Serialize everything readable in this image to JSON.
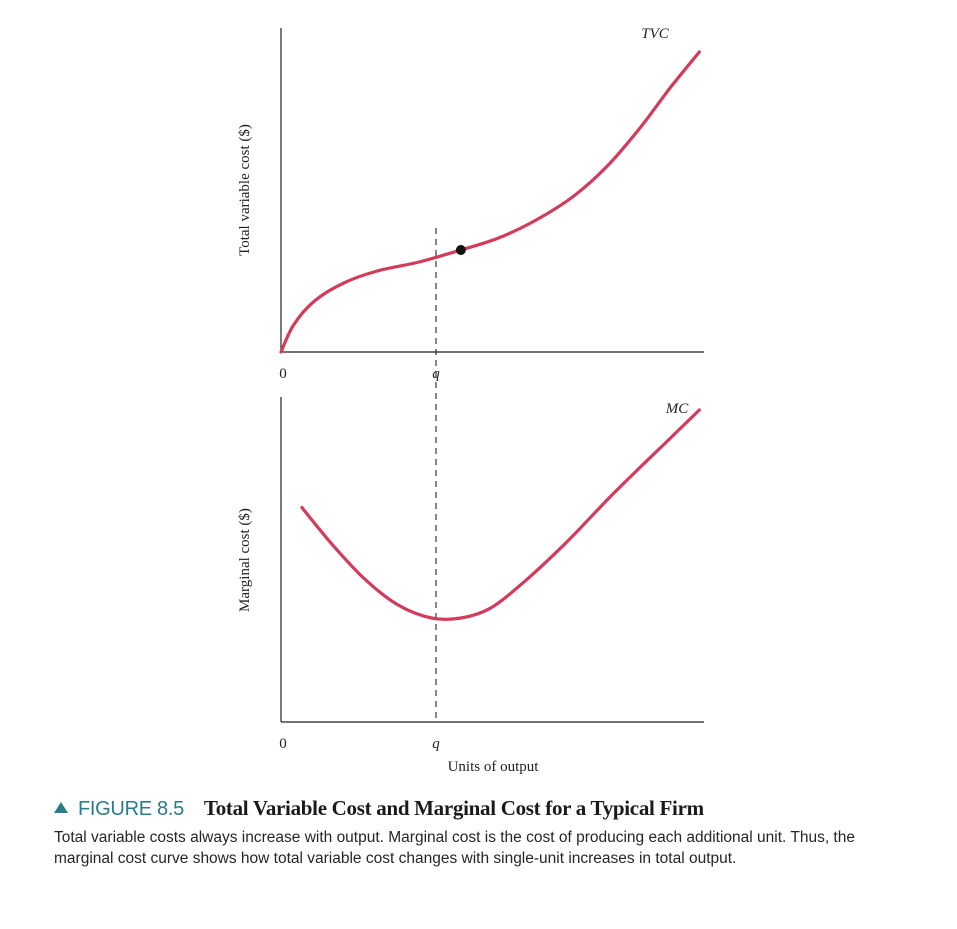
{
  "chart_data": [
    {
      "type": "line",
      "panel": "top",
      "series": [
        {
          "name": "TVC",
          "color": "#d43a5a",
          "x": [
            0,
            0.03,
            0.08,
            0.15,
            0.23,
            0.33,
            0.43,
            0.52,
            0.61,
            0.7,
            0.78,
            0.86,
            0.93,
            1.0
          ],
          "y": [
            0,
            0.09,
            0.17,
            0.23,
            0.27,
            0.3,
            0.34,
            0.38,
            0.44,
            0.52,
            0.62,
            0.75,
            0.88,
            1.0
          ]
        }
      ],
      "xlabel": "",
      "ylabel": "Total variable cost ($)",
      "xticks": [
        "0",
        "q"
      ],
      "xlim": [
        0,
        1.2
      ],
      "ylim": [
        0,
        1.1
      ],
      "marker": {
        "x": 0.43,
        "y": 0.34
      },
      "curve_label": "TVC"
    },
    {
      "type": "line",
      "panel": "bottom",
      "series": [
        {
          "name": "MC",
          "color": "#d43a5a",
          "x": [
            0.05,
            0.12,
            0.2,
            0.28,
            0.36,
            0.43,
            0.5,
            0.58,
            0.68,
            0.8,
            0.92,
            1.0
          ],
          "y": [
            0.66,
            0.55,
            0.44,
            0.36,
            0.32,
            0.32,
            0.35,
            0.43,
            0.55,
            0.71,
            0.86,
            0.96
          ]
        }
      ],
      "xlabel": "Units of output",
      "ylabel": "Marginal cost ($)",
      "xticks": [
        "0",
        "q"
      ],
      "xlim": [
        0,
        1.2
      ],
      "ylim": [
        0,
        1.0
      ],
      "curve_label": "MC"
    }
  ],
  "caption": {
    "figure_number": "FIGURE 8.5",
    "title": "Total Variable Cost and Marginal Cost for a Typical Firm",
    "body": "Total variable costs always increase with output. Marginal cost is the cost of producing each additional unit. Thus, the marginal cost curve shows how total variable cost changes with single-unit increases in total output."
  }
}
